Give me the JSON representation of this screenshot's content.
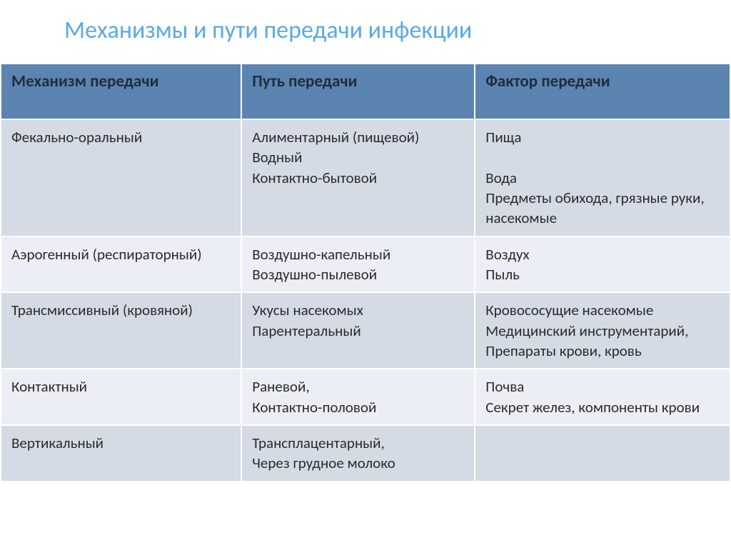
{
  "title": "Механизмы и пути передачи инфекции",
  "columns": [
    "Механизм передачи",
    "Путь передачи",
    "Фактор передачи"
  ],
  "rows": [
    {
      "mechanism": "Фекально-оральный",
      "path": "Алиментарный (пищевой)\nВодный\nКонтактно-бытовой",
      "factor": "Пища\n\nВода\nПредметы обихода, грязные руки, насекомые"
    },
    {
      "mechanism": "Аэрогенный (респираторный)",
      "path": "Воздушно-капельный\nВоздушно-пылевой",
      "factor": "Воздух\nПыль"
    },
    {
      "mechanism": "Трансмиссивный (кровяной)",
      "path": "Укусы насекомых\nПарентеральный",
      "factor": "Кровососущие насекомые\nМедицинский инструментарий,\nПрепараты крови, кровь"
    },
    {
      "mechanism": "Контактный",
      "path": "Раневой,\nКонтактно-половой",
      "factor": "Почва\nСекрет желез, компоненты крови"
    },
    {
      "mechanism": "Вертикальный",
      "path": "Трансплацентарный,\nЧерез грудное молоко",
      "factor": ""
    }
  ],
  "style": {
    "title_color": "#5aa9e6",
    "title_fontsize": 34,
    "header_bg": "#5b84b1",
    "header_text_color": "#1f2d3d",
    "header_fontsize": 23,
    "cell_fontsize": 21,
    "cell_text_color": "#2b2b2b",
    "row_odd_bg": "#d5dbe5",
    "row_even_bg": "#ebeef4",
    "border_color": "#ffffff",
    "border_width": 2,
    "col_widths_pct": [
      33,
      32,
      35
    ]
  }
}
